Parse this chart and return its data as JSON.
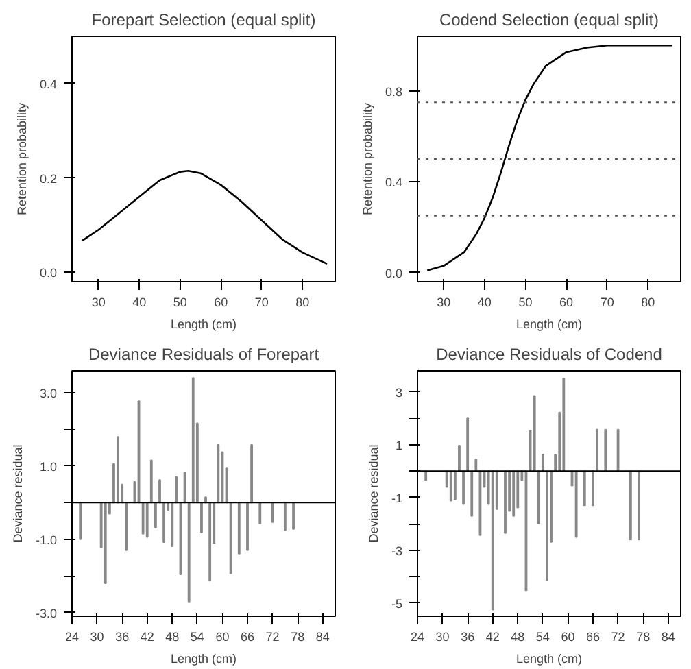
{
  "chart_data": [
    {
      "type": "line",
      "title": "Forepart Selection (equal split)",
      "xlabel": "Length (cm)",
      "ylabel": "Retention probability",
      "x": [
        26,
        30,
        35,
        40,
        45,
        50,
        52,
        55,
        60,
        65,
        70,
        75,
        80,
        86
      ],
      "values": [
        0.067,
        0.09,
        0.125,
        0.16,
        0.195,
        0.213,
        0.215,
        0.21,
        0.185,
        0.15,
        0.11,
        0.07,
        0.042,
        0.018
      ],
      "color": "#000000",
      "xlim": [
        23.5,
        88
      ],
      "ylim": [
        -0.02,
        0.5
      ],
      "xticks": [
        30,
        40,
        50,
        60,
        70,
        80
      ],
      "yticks": [
        {
          "value": 0,
          "label": "0.0"
        },
        0.2,
        0.4
      ],
      "grid": false,
      "marker": "none",
      "line_style": "solid"
    },
    {
      "type": "line",
      "title": "Codend Selection (equal split)",
      "xlabel": "Length (cm)",
      "ylabel": "Retention probability",
      "x": [
        26,
        30,
        35,
        38,
        40,
        42,
        44,
        45,
        46,
        48,
        50,
        52,
        55,
        60,
        65,
        70,
        75,
        80,
        86
      ],
      "values": [
        0.01,
        0.03,
        0.09,
        0.17,
        0.24,
        0.33,
        0.44,
        0.5,
        0.56,
        0.67,
        0.76,
        0.83,
        0.91,
        0.97,
        0.99,
        1.0,
        1.0,
        1.0,
        1.0
      ],
      "color": "#000000",
      "xlim": [
        23.6,
        88
      ],
      "ylim": [
        -0.04,
        1.04
      ],
      "xticks": [
        30,
        40,
        50,
        60,
        70,
        80
      ],
      "yticks": [
        {
          "value": 0,
          "label": "0.0"
        },
        0.4,
        0.8
      ],
      "grid": false,
      "marker": "none",
      "line_style": "solid",
      "ref_lines": [
        {
          "axis": "y",
          "value": 0.25,
          "color": "#555555",
          "line_style": "dotted"
        },
        {
          "axis": "y",
          "value": 0.5,
          "color": "#555555",
          "line_style": "dotted"
        },
        {
          "axis": "y",
          "value": 0.75,
          "color": "#555555",
          "line_style": "dotted"
        }
      ]
    },
    {
      "type": "bar",
      "title": "Deviance Residuals of Forepart",
      "xlabel": "Length (cm)",
      "ylabel": "Deviance residual",
      "x": [
        26,
        31,
        32,
        33,
        34,
        35,
        36,
        37,
        39,
        40,
        41,
        42,
        43,
        44,
        45,
        46,
        47,
        48,
        49,
        50,
        51,
        52,
        53,
        54,
        55,
        56,
        57,
        58,
        59,
        60,
        61,
        62,
        64,
        66,
        67,
        69,
        72,
        75,
        77
      ],
      "values": [
        -1.0,
        -1.23,
        -2.2,
        -0.3,
        1.06,
        1.8,
        0.5,
        -1.3,
        0.57,
        2.77,
        -0.85,
        -0.94,
        1.16,
        -0.68,
        0.62,
        -1.08,
        -0.2,
        -1.19,
        0.7,
        -1.96,
        0.83,
        -2.7,
        3.41,
        2.17,
        -0.81,
        0.15,
        -2.13,
        -1.1,
        1.58,
        1.38,
        0.94,
        -1.93,
        -1.39,
        -1.3,
        1.58,
        -0.57,
        -0.53,
        -0.75,
        -0.72
      ],
      "color": "#888888",
      "xlim": [
        24,
        87
      ],
      "ylim": [
        -3.1,
        3.6
      ],
      "xticks": [
        24,
        30,
        36,
        42,
        48,
        54,
        60,
        66,
        72,
        78,
        84
      ],
      "yticks": [
        {
          "value": -3,
          "label": "-3.0"
        },
        {
          "value": -2,
          "label": null
        },
        {
          "value": -1,
          "label": "-1.0"
        },
        {
          "value": 0,
          "label": null
        },
        {
          "value": 1,
          "label": "1.0"
        },
        {
          "value": 2,
          "label": null
        },
        {
          "value": 3,
          "label": "3.0"
        }
      ],
      "grid": false,
      "ref_lines": [
        {
          "axis": "y",
          "value": 0,
          "color": "#000000",
          "line_style": "solid"
        }
      ]
    },
    {
      "type": "bar",
      "title": "Deviance Residuals of Codend",
      "xlabel": "Length (cm)",
      "ylabel": "Deviance residual",
      "x": [
        26,
        31,
        32,
        33,
        34,
        35,
        36,
        37,
        38,
        39,
        40,
        41,
        42,
        43,
        45,
        46,
        47,
        48,
        49,
        50,
        51,
        52,
        53,
        54,
        55,
        56,
        57,
        58,
        59,
        61,
        62,
        64,
        66,
        67,
        69,
        72,
        75,
        77
      ],
      "values": [
        -0.34,
        -0.6,
        -1.12,
        -1.07,
        0.97,
        -1.25,
        2.0,
        -1.7,
        0.44,
        -2.43,
        -0.6,
        -1.25,
        -5.25,
        -1.44,
        -2.35,
        -1.51,
        -1.7,
        -1.38,
        -0.34,
        -4.52,
        1.54,
        2.85,
        -1.98,
        0.63,
        -4.13,
        -2.69,
        0.63,
        2.22,
        3.5,
        -0.55,
        -2.5,
        -1.3,
        -1.3,
        1.57,
        1.57,
        1.57,
        -2.6,
        -2.6
      ],
      "color": "#888888",
      "xlim": [
        24,
        87
      ],
      "ylim": [
        -5.5,
        3.8
      ],
      "xticks": [
        24,
        30,
        36,
        42,
        48,
        54,
        60,
        66,
        72,
        78,
        84
      ],
      "yticks": [
        -5,
        {
          "value": -4,
          "label": null
        },
        -3,
        {
          "value": -2,
          "label": null
        },
        -1,
        {
          "value": 0,
          "label": null
        },
        1,
        {
          "value": 2,
          "label": null
        },
        3
      ],
      "grid": false,
      "ref_lines": [
        {
          "axis": "y",
          "value": 0,
          "color": "#000000",
          "line_style": "solid"
        }
      ]
    }
  ]
}
